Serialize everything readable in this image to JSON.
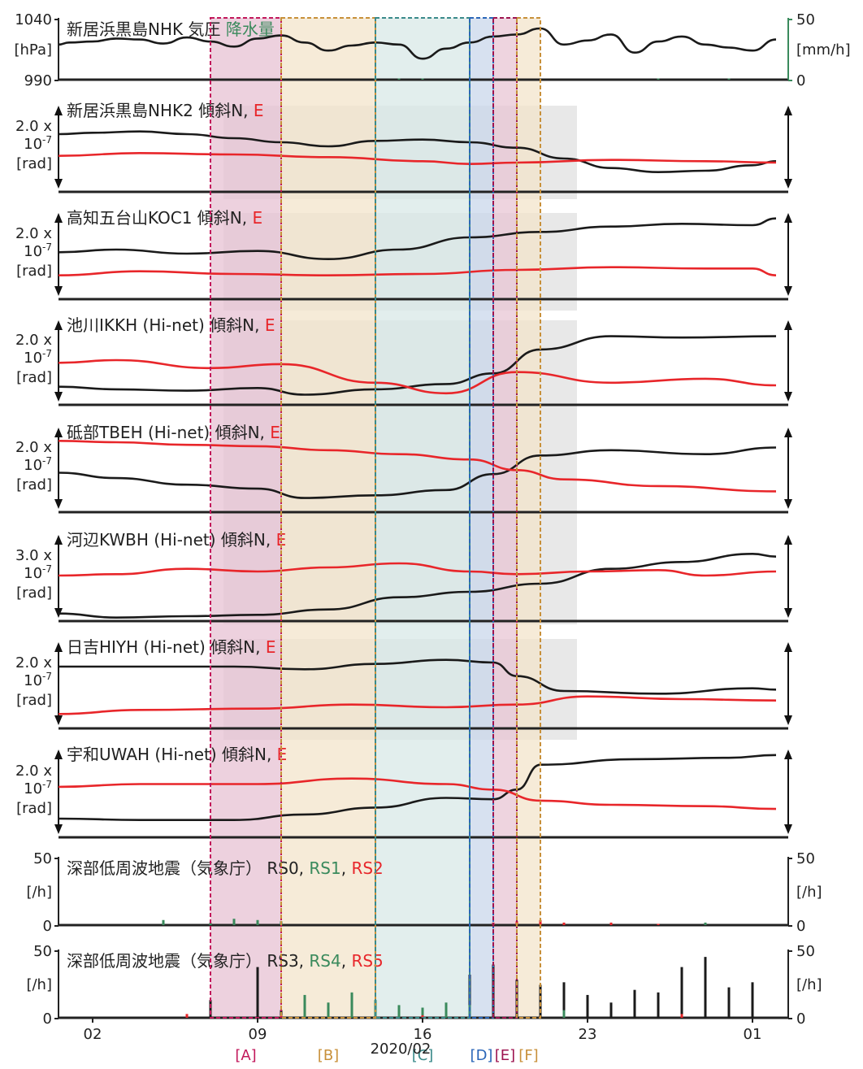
{
  "chart_data": {
    "type": "line",
    "x_axis": {
      "ticks": [
        "02",
        "09",
        "16",
        "23",
        "01"
      ],
      "date_label": "2020/02",
      "grid": false
    },
    "periods": [
      {
        "label": "[A]",
        "start": "2020-02-07",
        "end": "2020-02-10",
        "color": "#c2185b"
      },
      {
        "label": "[B]",
        "start": "2020-02-10",
        "end": "2020-02-14",
        "color": "#c8903a"
      },
      {
        "label": "[C]",
        "start": "2020-02-14",
        "end": "2020-02-18",
        "color": "#3a8a8a"
      },
      {
        "label": "[D]",
        "start": "2020-02-18",
        "end": "2020-02-19",
        "color": "#2a66b8"
      },
      {
        "label": "[E]",
        "start": "2020-02-19",
        "end": "2020-02-20",
        "color": "#9e1450"
      },
      {
        "label": "[F]",
        "start": "2020-02-20",
        "end": "2020-02-21",
        "color": "#c8903a"
      }
    ],
    "panels": [
      {
        "id": "pressure",
        "title": "新居浜黒島NHK 気圧",
        "title2": "降水量",
        "left_axis": {
          "ticks": [
            "1040",
            "990"
          ],
          "unit": "[hPa]",
          "ylim": [
            990,
            1040
          ]
        },
        "right_axis": {
          "ticks": [
            "50",
            "0"
          ],
          "unit": "[mm/h]",
          "ylim": [
            0,
            50
          ]
        },
        "series": [
          {
            "name": "気圧",
            "color": "#1a1a1a",
            "x": [
              "2020-01-31",
              "2020-02-01",
              "2020-02-02",
              "2020-02-03",
              "2020-02-04",
              "2020-02-05",
              "2020-02-06",
              "2020-02-07",
              "2020-02-08",
              "2020-02-09",
              "2020-02-10",
              "2020-02-11",
              "2020-02-12",
              "2020-02-13",
              "2020-02-14",
              "2020-02-15",
              "2020-02-16",
              "2020-02-17",
              "2020-02-18",
              "2020-02-19",
              "2020-02-20",
              "2020-02-21",
              "2020-02-22",
              "2020-02-23",
              "2020-02-24",
              "2020-02-25",
              "2020-02-26",
              "2020-02-27",
              "2020-02-28",
              "2020-02-29",
              "2020-03-01",
              "2020-03-02"
            ],
            "y": [
              1020,
              1022,
              1023,
              1026,
              1025,
              1021,
              1027,
              1023,
              1018,
              1026,
              1029,
              1022,
              1014,
              1019,
              1022,
              1020,
              1006,
              1016,
              1022,
              1028,
              1030,
              1036,
              1020,
              1024,
              1030,
              1012,
              1023,
              1028,
              1020,
              1017,
              1014,
              1025
            ]
          },
          {
            "name": "降水量",
            "color": "#3a8a5c",
            "bars": true,
            "x": [
              "2020-02-14",
              "2020-02-15",
              "2020-02-16",
              "2020-02-26",
              "2020-02-29"
            ],
            "y": [
              1,
              1,
              1,
              1,
              1
            ]
          }
        ]
      },
      {
        "id": "NHK2",
        "title": "新居浜黒島NHK2 傾斜N,",
        "title2": "E",
        "scale": [
          "2.0 x",
          "10-7",
          "[rad]"
        ],
        "series": [
          {
            "name": "N",
            "color": "#1a1a1a",
            "x": [
              "2020-01-31",
              "2020-02-02",
              "2020-02-04",
              "2020-02-06",
              "2020-02-08",
              "2020-02-10",
              "2020-02-12",
              "2020-02-14",
              "2020-02-16",
              "2020-02-18",
              "2020-02-20",
              "2020-02-22",
              "2020-02-24",
              "2020-02-26",
              "2020-02-28",
              "2020-03-01",
              "2020-03-02"
            ],
            "y": [
              0.9,
              1.0,
              1.1,
              0.9,
              0.6,
              0.3,
              0.0,
              0.4,
              0.5,
              0.3,
              -0.1,
              -0.9,
              -1.6,
              -1.9,
              -1.8,
              -1.4,
              -1.1
            ]
          },
          {
            "name": "E",
            "color": "#e8262a",
            "x": [
              "2020-01-31",
              "2020-02-04",
              "2020-02-08",
              "2020-02-12",
              "2020-02-16",
              "2020-02-18",
              "2020-02-20",
              "2020-02-24",
              "2020-02-28",
              "2020-03-02"
            ],
            "y": [
              -0.7,
              -0.5,
              -0.6,
              -0.8,
              -1.1,
              -1.3,
              -1.2,
              -1.0,
              -1.1,
              -1.2
            ]
          }
        ]
      },
      {
        "id": "KOC1",
        "title": "高知五台山KOC1 傾斜N,",
        "title2": "E",
        "scale": [
          "2.0 x",
          "10-7",
          "[rad]"
        ],
        "series": [
          {
            "name": "N",
            "color": "#1a1a1a",
            "x": [
              "2020-01-31",
              "2020-02-03",
              "2020-02-06",
              "2020-02-09",
              "2020-02-12",
              "2020-02-15",
              "2020-02-18",
              "2020-02-21",
              "2020-02-24",
              "2020-02-27",
              "2020-03-01",
              "2020-03-02"
            ],
            "y": [
              0.1,
              0.3,
              0.0,
              0.2,
              -0.4,
              0.3,
              1.2,
              1.6,
              2.0,
              2.2,
              2.1,
              2.6
            ]
          },
          {
            "name": "E",
            "color": "#e8262a",
            "x": [
              "2020-01-31",
              "2020-02-04",
              "2020-02-08",
              "2020-02-12",
              "2020-02-16",
              "2020-02-20",
              "2020-02-24",
              "2020-02-28",
              "2020-03-01",
              "2020-03-02"
            ],
            "y": [
              -1.6,
              -1.3,
              -1.5,
              -1.6,
              -1.5,
              -1.2,
              -1.0,
              -1.1,
              -1.1,
              -1.6
            ]
          }
        ]
      },
      {
        "id": "IKKH",
        "title": "池川IKKH (Hi-net) 傾斜N,",
        "title2": "E",
        "scale": [
          "2.0 x",
          "10-7",
          "[rad]"
        ],
        "series": [
          {
            "name": "N",
            "color": "#1a1a1a",
            "x": [
              "2020-01-31",
              "2020-02-03",
              "2020-02-06",
              "2020-02-09",
              "2020-02-11",
              "2020-02-14",
              "2020-02-17",
              "2020-02-19",
              "2020-02-21",
              "2020-02-24",
              "2020-02-27",
              "2020-03-02"
            ],
            "y": [
              -2.0,
              -2.2,
              -2.3,
              -2.1,
              -2.6,
              -2.2,
              -1.8,
              -1.0,
              0.8,
              1.8,
              1.7,
              1.8
            ]
          },
          {
            "name": "E",
            "color": "#e8262a",
            "x": [
              "2020-01-31",
              "2020-02-03",
              "2020-02-07",
              "2020-02-10",
              "2020-02-14",
              "2020-02-17",
              "2020-02-20",
              "2020-02-24",
              "2020-02-28",
              "2020-03-02"
            ],
            "y": [
              -0.2,
              0.0,
              -0.6,
              -0.3,
              -1.7,
              -2.5,
              -0.9,
              -1.7,
              -1.4,
              -1.9
            ]
          }
        ]
      },
      {
        "id": "TBEH",
        "title": "砥部TBEH (Hi-net) 傾斜N,",
        "title2": "E",
        "scale": [
          "2.0 x",
          "10-7",
          "[rad]"
        ],
        "series": [
          {
            "name": "N",
            "color": "#1a1a1a",
            "x": [
              "2020-01-31",
              "2020-02-03",
              "2020-02-06",
              "2020-02-09",
              "2020-02-11",
              "2020-02-14",
              "2020-02-17",
              "2020-02-19",
              "2020-02-21",
              "2020-02-24",
              "2020-02-28",
              "2020-03-02"
            ],
            "y": [
              -0.4,
              -0.8,
              -1.3,
              -1.6,
              -2.3,
              -2.1,
              -1.7,
              -0.5,
              0.9,
              1.3,
              1.0,
              1.5
            ]
          },
          {
            "name": "E",
            "color": "#e8262a",
            "x": [
              "2020-01-31",
              "2020-02-03",
              "2020-02-06",
              "2020-02-09",
              "2020-02-12",
              "2020-02-15",
              "2020-02-18",
              "2020-02-20",
              "2020-02-22",
              "2020-02-26",
              "2020-03-02"
            ],
            "y": [
              2.0,
              1.9,
              1.7,
              1.6,
              1.3,
              1.0,
              0.6,
              -0.2,
              -0.9,
              -1.4,
              -1.8
            ]
          }
        ]
      },
      {
        "id": "KWBH",
        "title": "河辺KWBH (Hi-net) 傾斜N,",
        "title2": "E",
        "scale": [
          "3.0 x",
          "10-7",
          "[rad]"
        ],
        "series": [
          {
            "name": "N",
            "color": "#1a1a1a",
            "x": [
              "2020-01-31",
              "2020-02-03",
              "2020-02-06",
              "2020-02-09",
              "2020-02-12",
              "2020-02-15",
              "2020-02-18",
              "2020-02-21",
              "2020-02-24",
              "2020-02-27",
              "2020-03-01",
              "2020-03-02"
            ],
            "y": [
              -2.8,
              -3.1,
              -3.0,
              -2.9,
              -2.5,
              -1.6,
              -1.2,
              -0.6,
              0.5,
              1.0,
              1.6,
              1.4
            ]
          },
          {
            "name": "E",
            "color": "#e8262a",
            "x": [
              "2020-01-31",
              "2020-02-03",
              "2020-02-06",
              "2020-02-09",
              "2020-02-12",
              "2020-02-15",
              "2020-02-18",
              "2020-02-20",
              "2020-02-23",
              "2020-02-26",
              "2020-02-28",
              "2020-03-02"
            ],
            "y": [
              0.0,
              0.1,
              0.5,
              0.3,
              0.6,
              0.9,
              0.3,
              0.1,
              0.3,
              0.4,
              0.0,
              0.3
            ]
          }
        ]
      },
      {
        "id": "HIYH",
        "title": "日吉HIYH (Hi-net) 傾斜N,",
        "title2": "E",
        "scale": [
          "2.0 x",
          "10-7",
          "[rad]"
        ],
        "series": [
          {
            "name": "N",
            "color": "#1a1a1a",
            "x": [
              "2020-01-31",
              "2020-02-04",
              "2020-02-08",
              "2020-02-11",
              "2020-02-14",
              "2020-02-17",
              "2020-02-19",
              "2020-02-20",
              "2020-02-22",
              "2020-02-26",
              "2020-03-01",
              "2020-03-02"
            ],
            "y": [
              1.2,
              1.2,
              1.2,
              1.0,
              1.4,
              1.7,
              1.5,
              0.5,
              -0.6,
              -0.8,
              -0.4,
              -0.5
            ]
          },
          {
            "name": "E",
            "color": "#e8262a",
            "x": [
              "2020-01-31",
              "2020-02-04",
              "2020-02-09",
              "2020-02-13",
              "2020-02-17",
              "2020-02-20",
              "2020-02-23",
              "2020-02-27",
              "2020-03-02"
            ],
            "y": [
              -2.3,
              -2.0,
              -1.9,
              -1.6,
              -1.8,
              -1.6,
              -1.0,
              -1.2,
              -1.3
            ]
          }
        ]
      },
      {
        "id": "UWAH",
        "title": "宇和UWAH (Hi-net) 傾斜N,",
        "title2": "E",
        "scale": [
          "2.0 x",
          "10-7",
          "[rad]"
        ],
        "series": [
          {
            "name": "N",
            "color": "#1a1a1a",
            "x": [
              "2020-01-31",
              "2020-02-04",
              "2020-02-08",
              "2020-02-11",
              "2020-02-14",
              "2020-02-17",
              "2020-02-19",
              "2020-02-20",
              "2020-02-21",
              "2020-02-25",
              "2020-02-29",
              "2020-03-02"
            ],
            "y": [
              -2.0,
              -2.1,
              -2.1,
              -1.7,
              -1.2,
              -0.5,
              -0.6,
              0.1,
              1.9,
              2.3,
              2.4,
              2.6
            ]
          },
          {
            "name": "E",
            "color": "#e8262a",
            "x": [
              "2020-01-31",
              "2020-02-04",
              "2020-02-09",
              "2020-02-13",
              "2020-02-17",
              "2020-02-19",
              "2020-02-21",
              "2020-02-24",
              "2020-02-28",
              "2020-03-02"
            ],
            "y": [
              0.3,
              0.5,
              0.5,
              0.9,
              0.5,
              0.1,
              -0.7,
              -1.0,
              -1.1,
              -1.3
            ]
          }
        ]
      },
      {
        "id": "RS012",
        "title": "深部低周波地震（気象庁） RS0,",
        "title2": "RS1",
        "title3": "RS2",
        "left_axis": {
          "ticks": [
            "50",
            "0"
          ],
          "unit": "[/h]",
          "ylim": [
            0,
            50
          ]
        },
        "right_axis": {
          "ticks": [
            "50",
            "0"
          ],
          "unit": "[/h]",
          "ylim": [
            0,
            50
          ]
        },
        "series": [
          {
            "name": "RS0",
            "color": "#1a1a1a",
            "bars": true,
            "x": [],
            "y": []
          },
          {
            "name": "RS1",
            "color": "#3a8a5c",
            "bars": true,
            "x": [
              "2020-02-05",
              "2020-02-07",
              "2020-02-08",
              "2020-02-09",
              "2020-02-10",
              "2020-02-28"
            ],
            "y": [
              4,
              2,
              5,
              4,
              3,
              2
            ]
          },
          {
            "name": "RS2",
            "color": "#e8262a",
            "bars": true,
            "x": [
              "2020-02-19",
              "2020-02-20",
              "2020-02-21",
              "2020-02-22",
              "2020-02-24",
              "2020-02-26"
            ],
            "y": [
              2,
              3,
              4,
              2,
              2,
              1
            ]
          }
        ]
      },
      {
        "id": "RS345",
        "title": "深部低周波地震（気象庁） RS3,",
        "title2": "RS4",
        "title3": "RS5",
        "left_axis": {
          "ticks": [
            "50",
            "0"
          ],
          "unit": "[/h]",
          "ylim": [
            0,
            50
          ]
        },
        "right_axis": {
          "ticks": [
            "50",
            "0"
          ],
          "unit": "[/h]",
          "ylim": [
            0,
            50
          ]
        },
        "series": [
          {
            "name": "RS3",
            "color": "#1a1a1a",
            "bars": true,
            "x": [
              "2020-02-07",
              "2020-02-09",
              "2020-02-10",
              "2020-02-18",
              "2020-02-19",
              "2020-02-20",
              "2020-02-21",
              "2020-02-22",
              "2020-02-23",
              "2020-02-24",
              "2020-02-25",
              "2020-02-26",
              "2020-02-27",
              "2020-02-28",
              "2020-02-29",
              "2020-03-01"
            ],
            "y": [
              14,
              40,
              6,
              34,
              42,
              30,
              26,
              28,
              18,
              12,
              22,
              20,
              40,
              48,
              24,
              28
            ]
          },
          {
            "name": "RS4",
            "color": "#3a8a5c",
            "bars": true,
            "x": [
              "2020-02-11",
              "2020-02-12",
              "2020-02-13",
              "2020-02-14",
              "2020-02-15",
              "2020-02-16",
              "2020-02-17",
              "2020-02-18",
              "2020-02-22"
            ],
            "y": [
              18,
              12,
              20,
              14,
              10,
              8,
              12,
              10,
              6
            ]
          },
          {
            "name": "RS5",
            "color": "#e8262a",
            "bars": true,
            "x": [
              "2020-02-06",
              "2020-02-10",
              "2020-02-16",
              "2020-02-27"
            ],
            "y": [
              3,
              2,
              2,
              3
            ]
          }
        ]
      }
    ]
  }
}
